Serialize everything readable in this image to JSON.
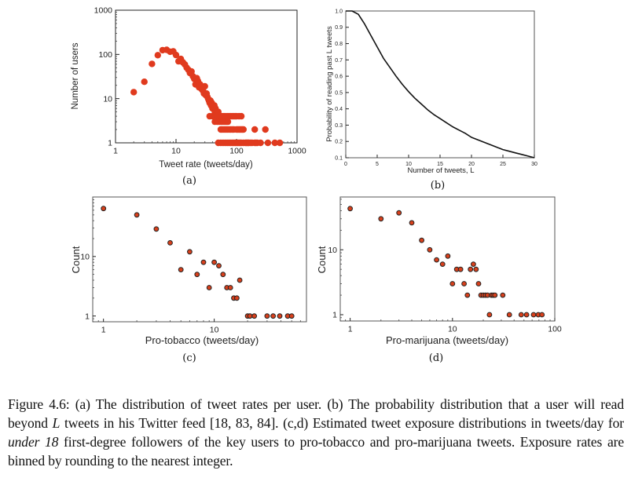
{
  "figure": {
    "caption": {
      "label": "Figure 4.6:",
      "part1": "(a) The distribution of tweet rates per user. (b) The probability distribution that a user will read beyond ",
      "L": "L",
      "part2": " tweets in his Twitter feed [18, 83, 84]. (c,d) Estimated tweet exposure distributions in tweets/day for ",
      "em": "under 18",
      "part3": " first-degree followers of the key users to pro-tobacco and pro-marijuana tweets. Exposure rates are binned by rounding to the nearest integer."
    }
  },
  "chart_data": [
    {
      "id": "a",
      "sublabel": "(a)",
      "type": "scatter",
      "title": "",
      "xlabel": "Tweet rate (tweets/day)",
      "ylabel": "Number of users",
      "xscale": "log",
      "yscale": "log",
      "xlim": [
        1,
        1000
      ],
      "ylim": [
        1,
        1000
      ],
      "xticks": [
        1,
        10,
        100,
        1000
      ],
      "xticklabels": [
        "1",
        "10",
        "100",
        "1000"
      ],
      "yticks": [
        1,
        10,
        100,
        1000
      ],
      "yticklabels": [
        "1",
        "10",
        "100",
        "1000"
      ],
      "color": "#e03a1e",
      "x": [
        2,
        3,
        4,
        5,
        6,
        7,
        8,
        9,
        10,
        11,
        12,
        13,
        14,
        15,
        16,
        17,
        18,
        19,
        20,
        21,
        22,
        23,
        24,
        25,
        26,
        27,
        28,
        29,
        30,
        31,
        32,
        33,
        34,
        35,
        36,
        37,
        38,
        39,
        40,
        41,
        42,
        43,
        44,
        45,
        46,
        47,
        48,
        49,
        50,
        36,
        40,
        44,
        48,
        52,
        56,
        60,
        64,
        70,
        75,
        80,
        85,
        90,
        95,
        100,
        110,
        120,
        44,
        48,
        52,
        56,
        60,
        64,
        68,
        72,
        55,
        58,
        62,
        66,
        70,
        75,
        80,
        85,
        90,
        100,
        105,
        110,
        115,
        120,
        125,
        130,
        200,
        300,
        50,
        55,
        60,
        65,
        70,
        75,
        80,
        85,
        90,
        95,
        100,
        105,
        110,
        115,
        120,
        130,
        140,
        145,
        150,
        155,
        160,
        170,
        180,
        200,
        210,
        220,
        250,
        330,
        430,
        520
      ],
      "y": [
        14,
        24,
        61,
        96,
        125,
        127,
        115,
        117,
        97,
        70,
        79,
        66,
        59,
        50,
        45,
        38,
        41,
        32,
        28,
        21,
        29,
        25,
        18,
        21,
        17,
        16,
        15,
        13,
        19,
        12,
        13,
        11,
        10,
        9,
        8,
        9,
        7,
        8,
        6,
        7,
        6,
        7,
        5,
        6,
        5,
        5,
        5,
        4,
        5,
        4,
        4,
        4,
        4,
        4,
        4,
        4,
        4,
        4,
        4,
        4,
        4,
        4,
        4,
        4,
        4,
        4,
        3,
        3,
        3,
        3,
        3,
        3,
        3,
        3,
        2,
        2,
        2,
        2,
        2,
        2,
        2,
        2,
        2,
        2,
        2,
        2,
        2,
        2,
        2,
        2,
        2,
        2,
        1,
        1,
        1,
        1,
        1,
        1,
        1,
        1,
        1,
        1,
        1,
        1,
        1,
        1,
        1,
        1,
        1,
        1,
        1,
        1,
        1,
        1,
        1,
        1,
        1,
        1,
        1,
        1,
        1,
        1
      ]
    },
    {
      "id": "b",
      "sublabel": "(b)",
      "type": "line",
      "title": "",
      "xlabel": "Number of tweets, L",
      "ylabel": "Probability of reading past L tweets",
      "xlim": [
        0,
        30
      ],
      "ylim": [
        0.1,
        1.0
      ],
      "xticks": [
        0,
        5,
        10,
        15,
        20,
        25,
        30
      ],
      "xticklabels": [
        "0",
        "5",
        "10",
        "15",
        "20",
        "25",
        "30"
      ],
      "yticks": [
        0.1,
        0.2,
        0.3,
        0.4,
        0.5,
        0.6,
        0.7,
        0.8,
        0.9,
        1.0
      ],
      "yticklabels": [
        "0.1",
        "0.2",
        "0.3",
        "0.4",
        "0.5",
        "0.6",
        "0.7",
        "0.8",
        "0.9",
        "1.0"
      ],
      "color": "#111111",
      "x": [
        0,
        1,
        2,
        3,
        4,
        5,
        6,
        7,
        8,
        9,
        10,
        11,
        12,
        13,
        14,
        15,
        16,
        17,
        18,
        19,
        20,
        21,
        22,
        23,
        24,
        25,
        26,
        27,
        28,
        29,
        30
      ],
      "y": [
        1.0,
        1.0,
        0.98,
        0.92,
        0.85,
        0.78,
        0.71,
        0.655,
        0.6,
        0.55,
        0.505,
        0.465,
        0.43,
        0.395,
        0.365,
        0.34,
        0.315,
        0.29,
        0.27,
        0.25,
        0.225,
        0.21,
        0.195,
        0.18,
        0.165,
        0.15,
        0.14,
        0.13,
        0.12,
        0.11,
        0.1
      ]
    },
    {
      "id": "c",
      "sublabel": "(c)",
      "type": "scatter",
      "title": "",
      "xlabel": "Pro-tobacco (tweets/day)",
      "ylabel": "Count",
      "xscale": "log",
      "yscale": "log",
      "xlim": [
        0.8,
        68
      ],
      "ylim": [
        0.8,
        100
      ],
      "xticks": [
        1,
        10
      ],
      "xticklabels": [
        "1",
        "10"
      ],
      "yticks": [
        1,
        10
      ],
      "yticklabels": [
        "1",
        "10"
      ],
      "color": "#d8401c",
      "x": [
        1,
        2,
        3,
        4,
        5,
        6,
        7,
        8,
        9,
        10,
        11,
        12,
        13,
        14,
        15,
        16,
        17,
        20,
        21,
        23,
        30,
        34,
        39,
        46,
        50
      ],
      "y": [
        64,
        50,
        29,
        17,
        6,
        12,
        5,
        8,
        3,
        8,
        7,
        5,
        3,
        3,
        2,
        2,
        4,
        1,
        1,
        1,
        1,
        1,
        1,
        1,
        1
      ]
    },
    {
      "id": "d",
      "sublabel": "(d)",
      "type": "scatter",
      "title": "",
      "xlabel": "Pro-marijuana (tweets/day)",
      "ylabel": "Count",
      "xscale": "log",
      "yscale": "log",
      "xlim": [
        0.8,
        100
      ],
      "ylim": [
        0.8,
        65
      ],
      "xticks": [
        1,
        10,
        100
      ],
      "xticklabels": [
        "1",
        "10",
        "100"
      ],
      "yticks": [
        1,
        10
      ],
      "yticklabels": [
        "1",
        "10"
      ],
      "color": "#d8401c",
      "x": [
        1,
        2,
        3,
        4,
        5,
        6,
        7,
        8,
        9,
        10,
        11,
        12,
        13,
        14,
        15,
        16,
        17,
        18,
        19,
        20,
        21,
        22,
        24,
        25,
        26,
        31,
        23,
        36,
        47,
        53,
        62,
        69,
        75
      ],
      "y": [
        43,
        30,
        37,
        26,
        14,
        10,
        7,
        6,
        8,
        3,
        5,
        5,
        3,
        2,
        5,
        6,
        5,
        3,
        2,
        2,
        2,
        2,
        2,
        2,
        2,
        2,
        1,
        1,
        1,
        1,
        1,
        1,
        1
      ]
    }
  ]
}
